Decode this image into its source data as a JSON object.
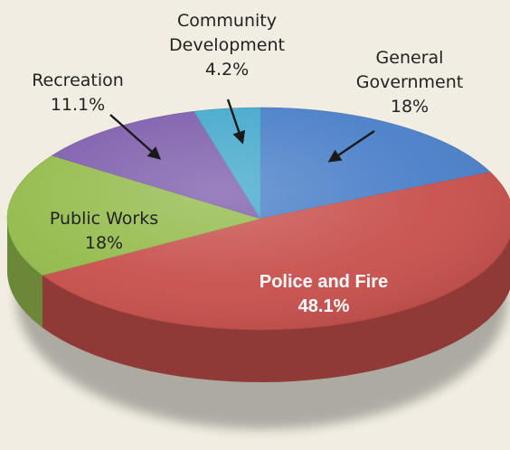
{
  "chart_data": {
    "type": "pie",
    "title": "",
    "slices": [
      {
        "label_lines": [
          "General",
          "Government"
        ],
        "value": 18,
        "value_label": "18%",
        "color": "#4a7fc8"
      },
      {
        "label_lines": [
          "Police and Fire"
        ],
        "value": 48.1,
        "value_label": "48.1%",
        "color": "#c8504c"
      },
      {
        "label_lines": [
          "Public Works"
        ],
        "value": 18,
        "value_label": "18%",
        "color": "#94bb4c"
      },
      {
        "label_lines": [
          "Recreation"
        ],
        "value": 11.1,
        "value_label": "11.1%",
        "color": "#7e5eac"
      },
      {
        "label_lines": [
          "Community",
          "Development"
        ],
        "value": 4.2,
        "value_label": "4.2%",
        "color": "#45a9cc"
      }
    ]
  }
}
